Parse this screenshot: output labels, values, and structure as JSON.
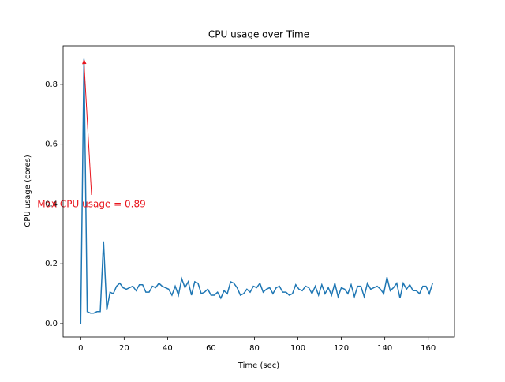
{
  "chart_data": {
    "type": "line",
    "title": "CPU usage over Time",
    "x_label": "Time (sec)",
    "y_label": "CPU usage (cores)",
    "annotation": "Max CPU usage = 0.89",
    "annotation_color": "#e8141c",
    "x": [
      0,
      1.5,
      3,
      4.5,
      6,
      7.5,
      9,
      10.5,
      12,
      13.5,
      15,
      16.5,
      18,
      19.5,
      21,
      22.5,
      24,
      25.5,
      27,
      28.5,
      30,
      31.5,
      33,
      34.5,
      36,
      37.5,
      39,
      40.5,
      42,
      43.5,
      45,
      46.5,
      48,
      49.5,
      51,
      52.5,
      54,
      55.5,
      57,
      58.5,
      60,
      61.5,
      63,
      64.5,
      66,
      67.5,
      69,
      70.5,
      72,
      73.5,
      75,
      76.5,
      78,
      79.5,
      81,
      82.5,
      84,
      85.5,
      87,
      88.5,
      90,
      91.5,
      93,
      94.5,
      96,
      97.5,
      99,
      100.5,
      102,
      103.5,
      105,
      106.5,
      108,
      109.5,
      111,
      112.5,
      114,
      115.5,
      117,
      118.5,
      120,
      121.5,
      123,
      124.5,
      126,
      127.5,
      129,
      130.5,
      132,
      133.5,
      135,
      136.5,
      138,
      139.5,
      141,
      142.5,
      144,
      145.5,
      147,
      148.5,
      150,
      151.5,
      153,
      154.5,
      156,
      157.5,
      159,
      160.5,
      162
    ],
    "series": [
      {
        "color": "#1f77b4",
        "values": [
          0,
          0.885,
          0.04,
          0.035,
          0.035,
          0.04,
          0.04,
          0.275,
          0.045,
          0.105,
          0.1,
          0.125,
          0.135,
          0.12,
          0.115,
          0.12,
          0.125,
          0.11,
          0.13,
          0.13,
          0.105,
          0.105,
          0.125,
          0.12,
          0.135,
          0.125,
          0.12,
          0.115,
          0.095,
          0.125,
          0.095,
          0.15,
          0.12,
          0.14,
          0.095,
          0.14,
          0.135,
          0.1,
          0.105,
          0.115,
          0.095,
          0.095,
          0.105,
          0.085,
          0.11,
          0.1,
          0.14,
          0.135,
          0.12,
          0.095,
          0.1,
          0.115,
          0.105,
          0.125,
          0.12,
          0.135,
          0.105,
          0.115,
          0.12,
          0.1,
          0.12,
          0.125,
          0.105,
          0.105,
          0.095,
          0.1,
          0.13,
          0.115,
          0.11,
          0.125,
          0.12,
          0.1,
          0.125,
          0.095,
          0.13,
          0.1,
          0.12,
          0.095,
          0.135,
          0.09,
          0.12,
          0.115,
          0.1,
          0.13,
          0.09,
          0.125,
          0.125,
          0.09,
          0.135,
          0.115,
          0.12,
          0.125,
          0.115,
          0.1,
          0.155,
          0.11,
          0.12,
          0.135,
          0.085,
          0.135,
          0.115,
          0.13,
          0.11,
          0.11,
          0.1,
          0.125,
          0.125,
          0.1,
          0.135
        ]
      }
    ],
    "xlim": [
      -8.1,
      172.1
    ],
    "ylim": [
      -0.045,
      0.929
    ],
    "xticks": [
      0,
      20,
      40,
      60,
      80,
      100,
      120,
      140,
      160
    ],
    "yticks": [
      {
        "value": 0,
        "label": "0.0"
      },
      0.2,
      0.4,
      0.6,
      0.8
    ]
  }
}
